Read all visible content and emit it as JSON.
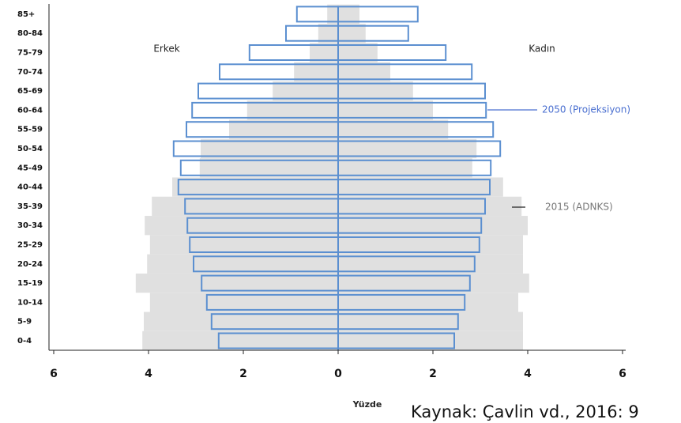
{
  "chart_data": {
    "type": "population-pyramid",
    "categories": [
      "0-4",
      "5-9",
      "10-14",
      "15-19",
      "20-24",
      "25-29",
      "30-34",
      "35-39",
      "40-44",
      "45-49",
      "50-54",
      "55-59",
      "60-64",
      "65-69",
      "70-74",
      "75-79",
      "80-84",
      "85+"
    ],
    "side_labels": [
      "Erkek",
      "Kadın"
    ],
    "series": [
      {
        "name": "2015 (ADNKS)",
        "color": "#e0e0e0",
        "male": [
          4.13,
          4.1,
          3.97,
          4.27,
          4.03,
          3.97,
          4.08,
          3.93,
          3.5,
          2.92,
          2.9,
          2.3,
          1.92,
          1.38,
          0.93,
          0.6,
          0.42,
          0.23
        ],
        "female": [
          3.9,
          3.9,
          3.8,
          4.03,
          3.9,
          3.9,
          4.0,
          3.87,
          3.48,
          2.83,
          2.92,
          2.32,
          2.0,
          1.58,
          1.1,
          0.83,
          0.58,
          0.45
        ]
      },
      {
        "name": "2050 (Projeksiyon)",
        "color": "#5b8fd0",
        "male": [
          2.52,
          2.67,
          2.77,
          2.88,
          3.05,
          3.13,
          3.18,
          3.23,
          3.37,
          3.32,
          3.47,
          3.2,
          3.08,
          2.95,
          2.5,
          1.87,
          1.1,
          0.87
        ],
        "female": [
          2.45,
          2.53,
          2.67,
          2.78,
          2.88,
          2.98,
          3.02,
          3.1,
          3.2,
          3.22,
          3.42,
          3.27,
          3.12,
          3.1,
          2.82,
          2.27,
          1.48,
          1.68
        ]
      }
    ],
    "xlim": [
      -6,
      6
    ],
    "xticks": [
      {
        "value": -6,
        "label": "6"
      },
      {
        "value": -4,
        "label": "4"
      },
      {
        "value": -2,
        "label": "2"
      },
      0,
      2,
      4,
      6
    ],
    "x_label": "Yüzde",
    "source": "Kaynak: Çavlin vd., 2016: 9"
  }
}
